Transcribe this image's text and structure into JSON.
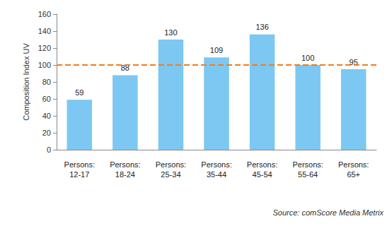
{
  "chart_data": {
    "type": "bar",
    "y_label": "Composition Index UV",
    "categories": [
      "Persons: 12-17",
      "Persons: 18-24",
      "Persons: 25-34",
      "Persons: 35-44",
      "Persons: 45-54",
      "Persons: 55-64",
      "Persons: 65+"
    ],
    "values": [
      59,
      88,
      130,
      109,
      136,
      100,
      95
    ],
    "color": "#7cc8f2",
    "ylim": [
      0,
      160
    ],
    "yticks": [
      0,
      20,
      40,
      60,
      80,
      100,
      120,
      140,
      160
    ],
    "grid": false,
    "data_labels": true,
    "reference_line": {
      "value": 100,
      "color": "#f07d1e",
      "line_style": "dashed"
    },
    "source": "Source: comScore Media Metrix"
  }
}
